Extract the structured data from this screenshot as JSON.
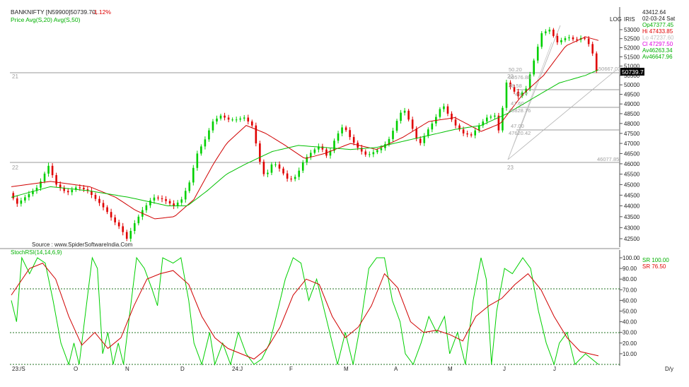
{
  "header": {
    "symbol": "BANKNIFTY [N59900]50739.70,",
    "change": "-1.12%",
    "indicator": "Price  Avg(S,20)  Avg(S,50)",
    "scale_log": "LOG",
    "scale_irs": "IRIS",
    "source": "Source : www.SpiderSoftwareIndia.Com"
  },
  "info": {
    "price": "43412.64",
    "date": "02-03-24 Sat",
    "op": "Op47377.45",
    "hi": "Hi 47433.85",
    "lo": "Lo 47237.60",
    "cl": "Cl  47297.50",
    "av1": "Av46263.34",
    "av2": "Av46647.96",
    "last_price_tag": "50739.7"
  },
  "stoch": {
    "label": "StochRSI(14,14,6,9)",
    "sr1": "SR  100.00",
    "sr2": "SR   76.50"
  },
  "colors": {
    "up": "#00d000",
    "down": "#e00000",
    "avg20": "#d00000",
    "avg50": "#00c000",
    "header_red": "#e00000",
    "header_green": "#00b000",
    "grid": "#9a9a9a",
    "dotted": "#207020"
  },
  "chart_data": [
    {
      "type": "candlestick",
      "title": "BANKNIFTY [N59900]50739.70,",
      "ylim": [
        41800,
        53600
      ],
      "yticks": [
        42500,
        43000,
        43500,
        44000,
        44500,
        45000,
        45500,
        46000,
        46500,
        47000,
        47500,
        48000,
        48500,
        49000,
        49500,
        50000,
        50500,
        51000,
        51500,
        52000,
        52500,
        53000
      ],
      "x_labels": [
        "23:/S",
        "O",
        "N",
        "D",
        "24:J",
        "F",
        "M",
        "A",
        "M",
        "J",
        "J",
        "D/y"
      ],
      "series": [
        {
          "name": "Price",
          "anchors": [
            [
              0,
              44600
            ],
            [
              6,
              44100
            ],
            [
              14,
              44500
            ],
            [
              22,
              44900
            ],
            [
              30,
              45900
            ],
            [
              36,
              45000
            ],
            [
              44,
              44600
            ],
            [
              52,
              44900
            ],
            [
              60,
              44700
            ],
            [
              68,
              44200
            ],
            [
              74,
              43800
            ],
            [
              80,
              43300
            ],
            [
              85,
              43000
            ],
            [
              90,
              42500
            ],
            [
              96,
              43200
            ],
            [
              102,
              43800
            ],
            [
              110,
              44400
            ],
            [
              118,
              44300
            ],
            [
              126,
              44000
            ],
            [
              132,
              44300
            ],
            [
              138,
              45100
            ],
            [
              144,
              46500
            ],
            [
              150,
              47200
            ],
            [
              156,
              48100
            ],
            [
              162,
              48400
            ],
            [
              168,
              48200
            ],
            [
              174,
              48200
            ],
            [
              180,
              48300
            ],
            [
              186,
              47900
            ],
            [
              192,
              46100
            ],
            [
              196,
              45300
            ],
            [
              202,
              46100
            ],
            [
              208,
              45700
            ],
            [
              214,
              45200
            ],
            [
              220,
              45400
            ],
            [
              226,
              46200
            ],
            [
              232,
              46600
            ],
            [
              238,
              46900
            ],
            [
              244,
              46300
            ],
            [
              250,
              47300
            ],
            [
              256,
              47900
            ],
            [
              262,
              47200
            ],
            [
              268,
              46700
            ],
            [
              274,
              46400
            ],
            [
              280,
              46600
            ],
            [
              286,
              46800
            ],
            [
              292,
              47300
            ],
            [
              298,
              48300
            ],
            [
              302,
              48800
            ],
            [
              308,
              47900
            ],
            [
              314,
              46900
            ],
            [
              320,
              47600
            ],
            [
              326,
              48200
            ],
            [
              332,
              49000
            ],
            [
              336,
              48500
            ],
            [
              342,
              47900
            ],
            [
              348,
              47500
            ],
            [
              354,
              47400
            ],
            [
              360,
              47900
            ],
            [
              366,
              48300
            ],
            [
              372,
              48400
            ],
            [
              376,
              47400
            ],
            [
              380,
              50200
            ],
            [
              385,
              49800
            ],
            [
              390,
              49400
            ],
            [
              396,
              49800
            ],
            [
              402,
              51300
            ],
            [
              408,
              52800
            ],
            [
              414,
              53000
            ],
            [
              420,
              52300
            ],
            [
              428,
              52600
            ],
            [
              434,
              52400
            ],
            [
              440,
              52600
            ],
            [
              446,
              52000
            ],
            [
              450,
              50740
            ]
          ]
        },
        {
          "name": "Avg(S,20)",
          "anchors": [
            [
              0,
              44900
            ],
            [
              30,
              45150
            ],
            [
              60,
              44900
            ],
            [
              80,
              44400
            ],
            [
              95,
              43800
            ],
            [
              110,
              43400
            ],
            [
              125,
              43500
            ],
            [
              140,
              44300
            ],
            [
              155,
              46000
            ],
            [
              165,
              47000
            ],
            [
              180,
              47900
            ],
            [
              195,
              47500
            ],
            [
              210,
              46900
            ],
            [
              225,
              46250
            ],
            [
              240,
              46500
            ],
            [
              260,
              47000
            ],
            [
              280,
              46700
            ],
            [
              300,
              47300
            ],
            [
              320,
              48100
            ],
            [
              340,
              48300
            ],
            [
              360,
              47600
            ],
            [
              375,
              48000
            ],
            [
              392,
              49500
            ],
            [
              408,
              50500
            ],
            [
              425,
              52100
            ],
            [
              440,
              52600
            ],
            [
              450,
              52400
            ]
          ]
        },
        {
          "name": "Avg(S,50)",
          "anchors": [
            [
              0,
              44400
            ],
            [
              30,
              44900
            ],
            [
              60,
              44700
            ],
            [
              90,
              44400
            ],
            [
              120,
              44000
            ],
            [
              135,
              44000
            ],
            [
              150,
              44700
            ],
            [
              165,
              45500
            ],
            [
              180,
              46000
            ],
            [
              200,
              46600
            ],
            [
              220,
              46900
            ],
            [
              240,
              46800
            ],
            [
              260,
              46700
            ],
            [
              280,
              46800
            ],
            [
              300,
              47100
            ],
            [
              320,
              47400
            ],
            [
              340,
              47700
            ],
            [
              360,
              47900
            ],
            [
              380,
              48500
            ],
            [
              400,
              49300
            ],
            [
              420,
              50100
            ],
            [
              440,
              50500
            ],
            [
              450,
              50800
            ]
          ]
        }
      ],
      "annotations": [
        "50.20",
        "50576.88",
        "48.58",
        "49.77",
        "47.60",
        "48828.76",
        "47.00",
        "47620.42",
        "46077.85",
        "50667.03",
        "21",
        "22",
        "23",
        "23"
      ]
    },
    {
      "type": "line",
      "title": "StochRSI(14,14,6,9)",
      "ylim": [
        0,
        100
      ],
      "yticks": [
        10,
        20,
        30,
        40,
        50,
        60,
        70,
        80,
        90,
        100
      ],
      "dotted_levels": [
        70,
        30,
        0
      ],
      "series": [
        {
          "name": "StochRSI(14,14,6,9)",
          "anchors": [
            [
              0,
              60
            ],
            [
              4,
              40
            ],
            [
              8,
              100
            ],
            [
              14,
              85
            ],
            [
              20,
              100
            ],
            [
              26,
              95
            ],
            [
              32,
              60
            ],
            [
              38,
              20
            ],
            [
              44,
              0
            ],
            [
              48,
              20
            ],
            [
              52,
              0
            ],
            [
              58,
              60
            ],
            [
              62,
              100
            ],
            [
              66,
              90
            ],
            [
              70,
              10
            ],
            [
              74,
              30
            ],
            [
              78,
              0
            ],
            [
              82,
              20
            ],
            [
              86,
              0
            ],
            [
              90,
              40
            ],
            [
              96,
              100
            ],
            [
              102,
              90
            ],
            [
              108,
              70
            ],
            [
              112,
              55
            ],
            [
              116,
              100
            ],
            [
              124,
              95
            ],
            [
              130,
              100
            ],
            [
              136,
              60
            ],
            [
              140,
              20
            ],
            [
              146,
              0
            ],
            [
              152,
              30
            ],
            [
              156,
              0
            ],
            [
              162,
              20
            ],
            [
              168,
              0
            ],
            [
              174,
              30
            ],
            [
              180,
              10
            ],
            [
              186,
              0
            ],
            [
              192,
              5
            ],
            [
              198,
              20
            ],
            [
              204,
              50
            ],
            [
              210,
              80
            ],
            [
              216,
              100
            ],
            [
              222,
              95
            ],
            [
              228,
              60
            ],
            [
              234,
              80
            ],
            [
              240,
              50
            ],
            [
              246,
              20
            ],
            [
              250,
              0
            ],
            [
              256,
              30
            ],
            [
              262,
              0
            ],
            [
              268,
              40
            ],
            [
              274,
              90
            ],
            [
              280,
              100
            ],
            [
              286,
              100
            ],
            [
              292,
              60
            ],
            [
              298,
              40
            ],
            [
              302,
              10
            ],
            [
              308,
              0
            ],
            [
              314,
              20
            ],
            [
              320,
              45
            ],
            [
              326,
              30
            ],
            [
              332,
              45
            ],
            [
              336,
              10
            ],
            [
              342,
              30
            ],
            [
              348,
              0
            ],
            [
              354,
              60
            ],
            [
              360,
              100
            ],
            [
              364,
              80
            ],
            [
              368,
              0
            ],
            [
              372,
              50
            ],
            [
              378,
              90
            ],
            [
              384,
              85
            ],
            [
              392,
              100
            ],
            [
              398,
              90
            ],
            [
              404,
              50
            ],
            [
              410,
              20
            ],
            [
              416,
              0
            ],
            [
              420,
              20
            ],
            [
              426,
              30
            ],
            [
              432,
              0
            ],
            [
              440,
              10
            ],
            [
              450,
              0
            ]
          ]
        },
        {
          "name": "SR",
          "anchors": [
            [
              0,
              65
            ],
            [
              14,
              90
            ],
            [
              24,
              95
            ],
            [
              34,
              80
            ],
            [
              44,
              45
            ],
            [
              54,
              18
            ],
            [
              64,
              30
            ],
            [
              74,
              15
            ],
            [
              84,
              25
            ],
            [
              94,
              55
            ],
            [
              104,
              80
            ],
            [
              114,
              85
            ],
            [
              124,
              88
            ],
            [
              136,
              75
            ],
            [
              146,
              45
            ],
            [
              156,
              25
            ],
            [
              166,
              15
            ],
            [
              176,
              10
            ],
            [
              186,
              5
            ],
            [
              196,
              15
            ],
            [
              206,
              35
            ],
            [
              216,
              65
            ],
            [
              226,
              80
            ],
            [
              236,
              75
            ],
            [
              246,
              45
            ],
            [
              256,
              25
            ],
            [
              266,
              35
            ],
            [
              276,
              55
            ],
            [
              286,
              85
            ],
            [
              296,
              72
            ],
            [
              306,
              40
            ],
            [
              316,
              30
            ],
            [
              326,
              32
            ],
            [
              336,
              28
            ],
            [
              346,
              22
            ],
            [
              356,
              45
            ],
            [
              366,
              55
            ],
            [
              376,
              62
            ],
            [
              386,
              75
            ],
            [
              396,
              85
            ],
            [
              406,
              70
            ],
            [
              416,
              45
            ],
            [
              426,
              25
            ],
            [
              436,
              12
            ],
            [
              450,
              8
            ]
          ]
        }
      ]
    }
  ]
}
